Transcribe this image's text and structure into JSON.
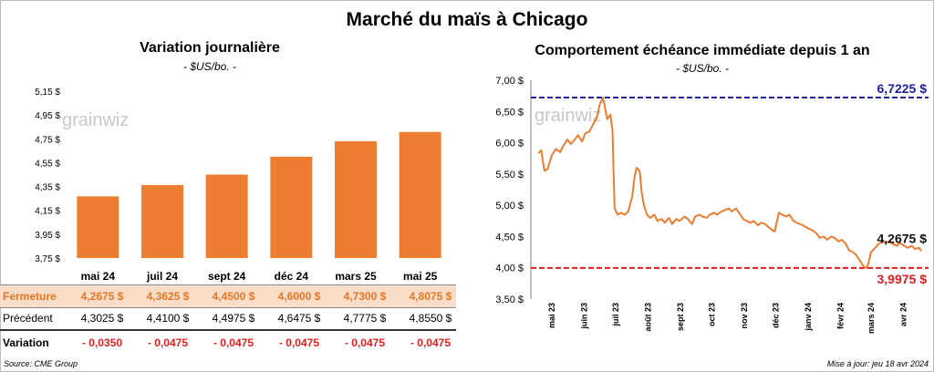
{
  "header": {
    "title": "Marché du maïs à Chicago"
  },
  "left_panel": {
    "title": "Variation  journalière",
    "unit": "- $US/bo. -",
    "watermark": "grainwiz"
  },
  "right_panel": {
    "title": "Comportement  échéance immédiate  depuis 1 an",
    "unit": "- $US/bo. -",
    "watermark": "grainwiz"
  },
  "table": {
    "rows": [
      {
        "label": "Fermeture",
        "values": [
          "4,2675  $",
          "4,3625  $",
          "4,4500  $",
          "4,6000  $",
          "4,7300  $",
          "4,8075  $"
        ]
      },
      {
        "label": "Précédent",
        "values": [
          "4,3025  $",
          "4,4100  $",
          "4,4975  $",
          "4,6475  $",
          "4,7775  $",
          "4,8550  $"
        ]
      },
      {
        "label": "Variation",
        "values": [
          "- 0,0350",
          "- 0,0475",
          "- 0,0475",
          "- 0,0475",
          "- 0,0475",
          "- 0,0475"
        ]
      }
    ]
  },
  "footer": {
    "source": "Source: CME Group",
    "updated": "Mise à jour: jeu 18 avr 2024"
  },
  "colors": {
    "bar": "#ed7d31",
    "line": "#ed7d31",
    "high_line": "#1f1fa0",
    "low_line": "#e02020"
  },
  "chart_data": [
    {
      "type": "bar",
      "categories": [
        "mai 24",
        "juil 24",
        "sept 24",
        "déc 24",
        "mars 25",
        "mai 25"
      ],
      "values": [
        4.2675,
        4.3625,
        4.45,
        4.6,
        4.73,
        4.8075
      ],
      "ylim": [
        3.75,
        5.15
      ],
      "yticks": [
        3.75,
        3.95,
        4.15,
        4.35,
        4.55,
        4.75,
        4.95,
        5.15
      ],
      "ytick_labels": [
        "3,75 $",
        "3,95 $",
        "4,15 $",
        "4,35 $",
        "4,55 $",
        "4,75 $",
        "4,95 $",
        "5,15 $"
      ],
      "grid": false
    },
    {
      "type": "line",
      "x_labels": [
        "mai 23",
        "juin 23",
        "juil 23",
        "août 23",
        "sept 23",
        "oct 23",
        "nov 23",
        "déc 23",
        "janv 24",
        "févr 24",
        "mars 24",
        "avr 24"
      ],
      "x_label_dates": [
        "2023-05-01",
        "2023-06-01",
        "2023-07-01",
        "2023-08-01",
        "2023-09-01",
        "2023-10-01",
        "2023-11-01",
        "2023-12-01",
        "2024-01-01",
        "2024-02-01",
        "2024-03-01",
        "2024-04-01"
      ],
      "ylim": [
        3.5,
        7.0
      ],
      "yticks": [
        3.5,
        4.0,
        4.5,
        5.0,
        5.5,
        6.0,
        6.5,
        7.0
      ],
      "ytick_labels": [
        "3,50 $",
        "4,00 $",
        "4,50 $",
        "5,00 $",
        "5,50 $",
        "6,00 $",
        "6,50 $",
        "7,00 $"
      ],
      "series": [
        {
          "points": [
            [
              "2023-04-18",
              5.83
            ],
            [
              "2023-04-21",
              5.88
            ],
            [
              "2023-04-24",
              5.55
            ],
            [
              "2023-04-27",
              5.58
            ],
            [
              "2023-05-01",
              5.8
            ],
            [
              "2023-05-05",
              5.9
            ],
            [
              "2023-05-09",
              5.85
            ],
            [
              "2023-05-12",
              5.95
            ],
            [
              "2023-05-16",
              6.05
            ],
            [
              "2023-05-19",
              5.98
            ],
            [
              "2023-05-23",
              6.05
            ],
            [
              "2023-05-26",
              6.12
            ],
            [
              "2023-05-30",
              6.02
            ],
            [
              "2023-06-02",
              6.15
            ],
            [
              "2023-06-06",
              6.18
            ],
            [
              "2023-06-09",
              6.28
            ],
            [
              "2023-06-13",
              6.4
            ],
            [
              "2023-06-16",
              6.62
            ],
            [
              "2023-06-19",
              6.72
            ],
            [
              "2023-06-21",
              6.55
            ],
            [
              "2023-06-23",
              6.38
            ],
            [
              "2023-06-26",
              6.45
            ],
            [
              "2023-06-28",
              6.2
            ],
            [
              "2023-06-30",
              4.95
            ],
            [
              "2023-07-03",
              4.85
            ],
            [
              "2023-07-06",
              4.88
            ],
            [
              "2023-07-10",
              4.85
            ],
            [
              "2023-07-13",
              4.9
            ],
            [
              "2023-07-17",
              5.15
            ],
            [
              "2023-07-19",
              5.45
            ],
            [
              "2023-07-21",
              5.6
            ],
            [
              "2023-07-24",
              5.55
            ],
            [
              "2023-07-26",
              5.2
            ],
            [
              "2023-07-28",
              5.0
            ],
            [
              "2023-07-31",
              4.85
            ],
            [
              "2023-08-03",
              4.8
            ],
            [
              "2023-08-07",
              4.85
            ],
            [
              "2023-08-10",
              4.75
            ],
            [
              "2023-08-14",
              4.78
            ],
            [
              "2023-08-17",
              4.72
            ],
            [
              "2023-08-21",
              4.8
            ],
            [
              "2023-08-24",
              4.7
            ],
            [
              "2023-08-28",
              4.78
            ],
            [
              "2023-08-31",
              4.75
            ],
            [
              "2023-09-05",
              4.82
            ],
            [
              "2023-09-08",
              4.78
            ],
            [
              "2023-09-12",
              4.7
            ],
            [
              "2023-09-15",
              4.82
            ],
            [
              "2023-09-19",
              4.85
            ],
            [
              "2023-09-22",
              4.82
            ],
            [
              "2023-09-26",
              4.8
            ],
            [
              "2023-09-29",
              4.85
            ],
            [
              "2023-10-03",
              4.88
            ],
            [
              "2023-10-06",
              4.85
            ],
            [
              "2023-10-10",
              4.9
            ],
            [
              "2023-10-13",
              4.92
            ],
            [
              "2023-10-17",
              4.95
            ],
            [
              "2023-10-20",
              4.9
            ],
            [
              "2023-10-24",
              4.95
            ],
            [
              "2023-10-27",
              4.88
            ],
            [
              "2023-10-31",
              4.78
            ],
            [
              "2023-11-03",
              4.75
            ],
            [
              "2023-11-07",
              4.72
            ],
            [
              "2023-11-10",
              4.75
            ],
            [
              "2023-11-14",
              4.68
            ],
            [
              "2023-11-17",
              4.72
            ],
            [
              "2023-11-21",
              4.7
            ],
            [
              "2023-11-24",
              4.65
            ],
            [
              "2023-11-28",
              4.6
            ],
            [
              "2023-11-30",
              4.58
            ],
            [
              "2023-12-04",
              4.88
            ],
            [
              "2023-12-07",
              4.85
            ],
            [
              "2023-12-11",
              4.82
            ],
            [
              "2023-12-14",
              4.85
            ],
            [
              "2023-12-18",
              4.75
            ],
            [
              "2023-12-21",
              4.72
            ],
            [
              "2023-12-27",
              4.68
            ],
            [
              "2024-01-02",
              4.62
            ],
            [
              "2024-01-05",
              4.6
            ],
            [
              "2024-01-09",
              4.55
            ],
            [
              "2024-01-12",
              4.48
            ],
            [
              "2024-01-16",
              4.5
            ],
            [
              "2024-01-19",
              4.45
            ],
            [
              "2024-01-23",
              4.5
            ],
            [
              "2024-01-26",
              4.48
            ],
            [
              "2024-01-30",
              4.42
            ],
            [
              "2024-02-02",
              4.45
            ],
            [
              "2024-02-06",
              4.38
            ],
            [
              "2024-02-09",
              4.28
            ],
            [
              "2024-02-13",
              4.25
            ],
            [
              "2024-02-16",
              4.2
            ],
            [
              "2024-02-20",
              4.1
            ],
            [
              "2024-02-23",
              4.02
            ],
            [
              "2024-02-26",
              3.9975
            ],
            [
              "2024-02-28",
              4.1
            ],
            [
              "2024-03-01",
              4.25
            ],
            [
              "2024-03-05",
              4.32
            ],
            [
              "2024-03-08",
              4.38
            ],
            [
              "2024-03-12",
              4.42
            ],
            [
              "2024-03-15",
              4.4
            ],
            [
              "2024-03-19",
              4.42
            ],
            [
              "2024-03-22",
              4.38
            ],
            [
              "2024-03-26",
              4.35
            ],
            [
              "2024-03-28",
              4.4
            ],
            [
              "2024-04-02",
              4.35
            ],
            [
              "2024-04-05",
              4.32
            ],
            [
              "2024-04-09",
              4.35
            ],
            [
              "2024-04-12",
              4.3
            ],
            [
              "2024-04-16",
              4.32
            ],
            [
              "2024-04-18",
              4.2675
            ]
          ]
        }
      ],
      "reference_lines": [
        {
          "value": 6.7225,
          "label": "6,7225 $",
          "style": "dashed",
          "color": "#1f1fa0"
        },
        {
          "value": 3.9975,
          "label": "3,9975 $",
          "style": "dashed",
          "color": "#e02020"
        }
      ],
      "last_value_label": "4,2675 $",
      "grid": false
    }
  ]
}
